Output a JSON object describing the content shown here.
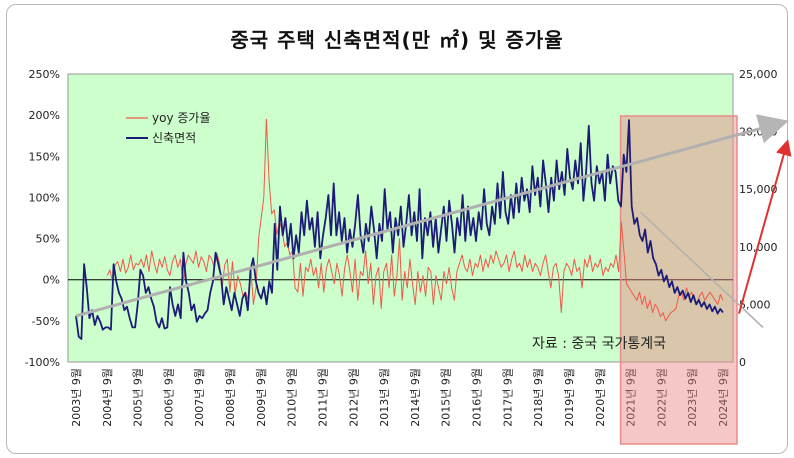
{
  "chart_data": {
    "type": "line",
    "title": "중국 주택 신축면적(만 ㎡) 및 증가율",
    "x_tick_labels": [
      "2003년 9월",
      "2004년 9월",
      "2005년 9월",
      "2006년 9월",
      "2007년 9월",
      "2008년 9월",
      "2009년 9월",
      "2010년 9월",
      "2011년 9월",
      "2012년 9월",
      "2013년 9월",
      "2014년 9월",
      "2015년 9월",
      "2016년 9월",
      "2017년 9월",
      "2018년 9월",
      "2019년 9월",
      "2020년 9월",
      "2021년 9월",
      "2022년 9월",
      "2023년 9월",
      "2024년 9월"
    ],
    "y_left": {
      "ticks": [
        "250%",
        "200%",
        "150%",
        "100%",
        "50%",
        "0%",
        "-50%",
        "-100%"
      ],
      "range": [
        -100,
        250
      ],
      "unit": "%"
    },
    "y_right": {
      "ticks": [
        "25,000",
        "20,000",
        "15,000",
        "10,000",
        "5,000",
        "0"
      ],
      "range": [
        0,
        25000
      ]
    },
    "legend": {
      "position": "top-left",
      "entries": [
        "yoy 증가율",
        "신축면적"
      ]
    },
    "series": [
      {
        "name": "yoy 증가율",
        "axis": "left",
        "color": "#ee5a4a",
        "values": [
          null,
          null,
          null,
          null,
          null,
          null,
          null,
          null,
          null,
          null,
          null,
          null,
          5,
          12,
          -3,
          18,
          22,
          10,
          25,
          8,
          15,
          30,
          12,
          20,
          18,
          25,
          15,
          30,
          10,
          35,
          20,
          8,
          25,
          15,
          28,
          12,
          5,
          22,
          30,
          15,
          25,
          -5,
          18,
          30,
          25,
          20,
          35,
          15,
          28,
          22,
          10,
          30,
          25,
          15,
          32,
          20,
          -10,
          18,
          25,
          -15,
          22,
          -18,
          5,
          -5,
          -20,
          -15,
          -25,
          15,
          -30,
          -10,
          50,
          75,
          100,
          195,
          120,
          80,
          85,
          55,
          70,
          60,
          40,
          45,
          30,
          35,
          -10,
          -15,
          20,
          -20,
          15,
          10,
          25,
          5,
          15,
          -10,
          20,
          -15,
          15,
          25,
          10,
          -5,
          20,
          5,
          -20,
          15,
          30,
          10,
          -15,
          25,
          -25,
          10,
          5,
          35,
          -5,
          20,
          -30,
          5,
          15,
          -35,
          10,
          20,
          -10,
          30,
          -20,
          5,
          50,
          -25,
          10,
          -10,
          25,
          -5,
          -30,
          10,
          -15,
          5,
          -20,
          15,
          10,
          -30,
          5,
          -10,
          -25,
          10,
          -5,
          15,
          -10,
          -25,
          10,
          20,
          30,
          15,
          10,
          25,
          5,
          20,
          15,
          30,
          10,
          25,
          15,
          30,
          20,
          35,
          25,
          15,
          20,
          30,
          10,
          25,
          35,
          15,
          20,
          10,
          30,
          15,
          25,
          10,
          20,
          15,
          5,
          20,
          30,
          10,
          -10,
          15,
          20,
          5,
          -40,
          10,
          20,
          15,
          5,
          25,
          10,
          15,
          -10,
          25,
          15,
          30,
          10,
          20,
          15,
          25,
          5,
          15,
          10,
          20,
          15,
          30,
          10,
          70,
          35,
          -5,
          -10,
          -15,
          -20,
          -25,
          -15,
          -30,
          -20,
          -35,
          -25,
          -40,
          -30,
          -35,
          -45,
          -40,
          -50,
          -45,
          -40,
          -38,
          -35,
          -20,
          -15,
          -25,
          -10,
          -20,
          -15,
          -25,
          -30,
          -20,
          -15,
          -25,
          -20,
          -15,
          -20,
          -25,
          -30,
          -18,
          -25
        ]
      },
      {
        "name": "신축면적",
        "axis": "right",
        "color": "#1c1c78",
        "values": [
          4000,
          2200,
          2000,
          8500,
          6500,
          3800,
          4500,
          3200,
          4000,
          3500,
          2800,
          3000,
          3000,
          2800,
          8500,
          7000,
          6000,
          5500,
          4500,
          4800,
          3800,
          3000,
          3000,
          5000,
          8000,
          7500,
          6000,
          6500,
          5500,
          4800,
          3500,
          3000,
          3800,
          2900,
          3000,
          6500,
          5000,
          4000,
          5000,
          3800,
          9500,
          7000,
          6000,
          4500,
          5000,
          3500,
          4000,
          3800,
          4200,
          4500,
          6000,
          7000,
          9500,
          8500,
          7500,
          5000,
          6500,
          5500,
          4500,
          6000,
          5000,
          4000,
          5500,
          6000,
          4500,
          8000,
          9000,
          7000,
          6000,
          5500,
          6500,
          5000,
          7000,
          6000,
          12000,
          8000,
          13500,
          11000,
          12500,
          10000,
          12000,
          9000,
          11000,
          9500,
          13000,
          11000,
          14000,
          11500,
          12500,
          10000,
          13000,
          9000,
          11000,
          12500,
          14500,
          11000,
          15500,
          11000,
          13000,
          10500,
          12500,
          9500,
          11500,
          10000,
          12000,
          14500,
          11000,
          9500,
          12000,
          10500,
          13500,
          11500,
          9000,
          12000,
          10500,
          15000,
          11500,
          13000,
          9500,
          12500,
          11000,
          13500,
          10000,
          12000,
          14500,
          11000,
          13000,
          10500,
          15000,
          9000,
          12500,
          11000,
          13000,
          10000,
          12500,
          9500,
          11500,
          13500,
          10500,
          14000,
          12000,
          9500,
          12500,
          11000,
          14500,
          10500,
          13500,
          11000,
          12500,
          10500,
          13000,
          11500,
          15000,
          12000,
          11000,
          13500,
          12000,
          15500,
          12500,
          16500,
          13000,
          12000,
          14500,
          12500,
          15500,
          13000,
          16000,
          14000,
          15000,
          13000,
          17000,
          14500,
          16000,
          13500,
          17500,
          15500,
          13000,
          16000,
          14000,
          17500,
          15000,
          16500,
          14500,
          18500,
          16000,
          15000,
          17500,
          15500,
          19000,
          14000,
          16500,
          20500,
          15500,
          14000,
          17000,
          15500,
          16500,
          14000,
          18000,
          15500,
          17000,
          16500,
          14000,
          13500,
          18000,
          16500,
          21000,
          13500,
          12000,
          12500,
          11000,
          10500,
          11500,
          9500,
          10500,
          9000,
          8500,
          7500,
          8000,
          7000,
          7500,
          6500,
          7000,
          6000,
          6500,
          5800,
          6200,
          5500,
          6000,
          5200,
          5800,
          5000,
          5400,
          4800,
          5200,
          4600,
          5000,
          4400,
          4800,
          4200,
          4600,
          4300
        ]
      }
    ],
    "annotations": {
      "source": "자료 : 중국 국가통계국"
    },
    "highlight_region": {
      "from": "2021년 9월",
      "to": "2024년 9월"
    },
    "grid": false
  }
}
